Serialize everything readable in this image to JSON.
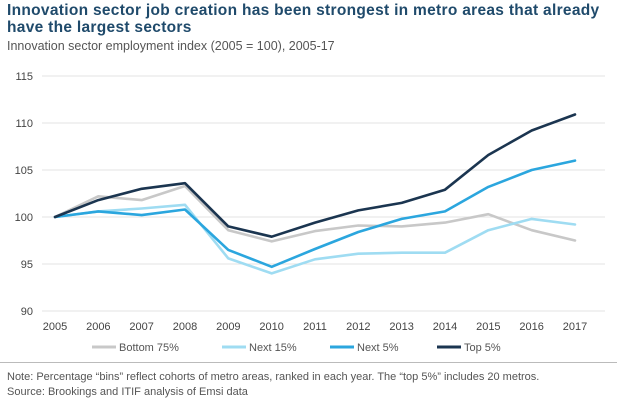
{
  "header": {
    "title": "Innovation sector job creation has been strongest in metro areas that already have the largest sectors",
    "subtitle": "Innovation sector employment index (2005 = 100), 2005-17"
  },
  "footer": {
    "note": "Note: Percentage “bins” reflect cohorts of metro areas, ranked in each year. The “top 5%” includes 20 metros.",
    "source": "Source: Brookings and ITIF analysis of Emsi data"
  },
  "chart_data": {
    "type": "line",
    "title": "Innovation sector job creation has been strongest in metro areas that already have the largest sectors",
    "subtitle": "Innovation sector employment index (2005 = 100), 2005-17",
    "xlabel": "",
    "ylabel": "",
    "x": [
      "2005",
      "2006",
      "2007",
      "2008",
      "2009",
      "2010",
      "2011",
      "2012",
      "2013",
      "2014",
      "2015",
      "2016",
      "2017"
    ],
    "ylim": [
      90,
      115
    ],
    "yticks": [
      90,
      95,
      100,
      105,
      110,
      115
    ],
    "grid": true,
    "legend_position": "bottom",
    "series": [
      {
        "name": "Bottom 75%",
        "color": "#c8c8c8",
        "values": [
          100.0,
          102.2,
          101.8,
          103.3,
          98.6,
          97.4,
          98.5,
          99.1,
          99.0,
          99.4,
          100.3,
          98.6,
          97.5
        ]
      },
      {
        "name": "Next 15%",
        "color": "#9fdcf2",
        "values": [
          100.0,
          100.6,
          100.9,
          101.3,
          95.6,
          94.0,
          95.5,
          96.1,
          96.2,
          96.2,
          98.6,
          99.8,
          99.2
        ]
      },
      {
        "name": "Next 5%",
        "color": "#2ba6de",
        "values": [
          100.0,
          100.6,
          100.2,
          100.8,
          96.5,
          94.7,
          96.6,
          98.4,
          99.8,
          100.6,
          103.2,
          105.0,
          106.0
        ]
      },
      {
        "name": "Top 5%",
        "color": "#1b3550",
        "values": [
          100.0,
          101.8,
          103.0,
          103.6,
          99.0,
          97.9,
          99.4,
          100.7,
          101.5,
          102.9,
          106.6,
          109.2,
          110.9
        ]
      }
    ]
  }
}
